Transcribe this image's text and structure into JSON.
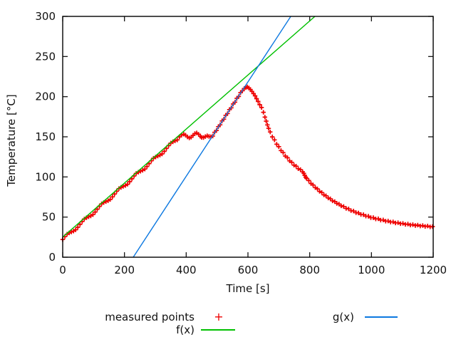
{
  "window": {
    "background": "#ffffff"
  },
  "chart_data": {
    "type": "scatter",
    "title": "",
    "xlabel": "Time [s]",
    "ylabel": "Temperature [°C]",
    "xlim": [
      0,
      1200
    ],
    "ylim": [
      0,
      300
    ],
    "xticks": [
      0,
      200,
      400,
      600,
      800,
      1000,
      1200
    ],
    "yticks": [
      0,
      50,
      100,
      150,
      200,
      250,
      300
    ],
    "grid": false,
    "border_color": "#000000",
    "legend_position": "below plot, two columns",
    "series": [
      {
        "name": "measured points",
        "style": "points",
        "marker": "plus",
        "color": "#ee0000",
        "points": [
          [
            0,
            22.0
          ],
          [
            7,
            25.6
          ],
          [
            14,
            28.7
          ],
          [
            21,
            30.3
          ],
          [
            28,
            31.5
          ],
          [
            35,
            32.6
          ],
          [
            42,
            34.2
          ],
          [
            49,
            37.3
          ],
          [
            56,
            40.9
          ],
          [
            63,
            44.5
          ],
          [
            70,
            47.6
          ],
          [
            77,
            49.2
          ],
          [
            84,
            50.4
          ],
          [
            91,
            51.5
          ],
          [
            98,
            53.1
          ],
          [
            105,
            56.3
          ],
          [
            112,
            59.8
          ],
          [
            119,
            63.4
          ],
          [
            126,
            66.5
          ],
          [
            133,
            68.1
          ],
          [
            140,
            69.3
          ],
          [
            147,
            70.4
          ],
          [
            154,
            72.0
          ],
          [
            161,
            75.2
          ],
          [
            168,
            78.7
          ],
          [
            175,
            82.3
          ],
          [
            182,
            85.5
          ],
          [
            189,
            87.0
          ],
          [
            196,
            88.2
          ],
          [
            203,
            89.4
          ],
          [
            210,
            90.9
          ],
          [
            217,
            94.1
          ],
          [
            224,
            97.6
          ],
          [
            231,
            101.2
          ],
          [
            238,
            104.4
          ],
          [
            245,
            105.9
          ],
          [
            252,
            107.1
          ],
          [
            259,
            108.3
          ],
          [
            266,
            109.8
          ],
          [
            273,
            113.0
          ],
          [
            280,
            116.6
          ],
          [
            287,
            120.1
          ],
          [
            294,
            123.3
          ],
          [
            301,
            124.8
          ],
          [
            308,
            126.0
          ],
          [
            315,
            127.2
          ],
          [
            322,
            128.7
          ],
          [
            329,
            131.9
          ],
          [
            336,
            135.5
          ],
          [
            343,
            139.0
          ],
          [
            350,
            142.2
          ],
          [
            357,
            143.8
          ],
          [
            364,
            144.9
          ],
          [
            371,
            146.1
          ],
          [
            378,
            149.9
          ],
          [
            385,
            152.0
          ],
          [
            392,
            153.3
          ],
          [
            398,
            152.0
          ],
          [
            404,
            149.8
          ],
          [
            410,
            148.6
          ],
          [
            416,
            149.5
          ],
          [
            422,
            151.8
          ],
          [
            428,
            154.0
          ],
          [
            434,
            154.8
          ],
          [
            440,
            153.2
          ],
          [
            446,
            150.6
          ],
          [
            450,
            149.2
          ],
          [
            456,
            149.0
          ],
          [
            462,
            150.3
          ],
          [
            468,
            151.2
          ],
          [
            474,
            150.4
          ],
          [
            480,
            150.0
          ],
          [
            486,
            151.0
          ],
          [
            492,
            155.6
          ],
          [
            498,
            157.9
          ],
          [
            504,
            162.6
          ],
          [
            510,
            164.9
          ],
          [
            516,
            169.7
          ],
          [
            522,
            172.0
          ],
          [
            528,
            176.7
          ],
          [
            534,
            179.0
          ],
          [
            540,
            183.8
          ],
          [
            546,
            186.1
          ],
          [
            552,
            190.8
          ],
          [
            558,
            193.1
          ],
          [
            564,
            197.9
          ],
          [
            570,
            200.2
          ],
          [
            576,
            204.9
          ],
          [
            582,
            207.3
          ],
          [
            588,
            210.2
          ],
          [
            593,
            211.4
          ],
          [
            598,
            212.1
          ],
          [
            603,
            210.8
          ],
          [
            608,
            208.9
          ],
          [
            613,
            206.5
          ],
          [
            618,
            203.8
          ],
          [
            623,
            201.0
          ],
          [
            628,
            197.5
          ],
          [
            633,
            194.0
          ],
          [
            638,
            190.0
          ],
          [
            644,
            186.5
          ],
          [
            650,
            180.5
          ],
          [
            655,
            174.5
          ],
          [
            659,
            169.5
          ],
          [
            663,
            164.8
          ],
          [
            667,
            160.5
          ],
          [
            672,
            156.0
          ],
          [
            679,
            149.9
          ],
          [
            686,
            146.2
          ],
          [
            693,
            140.8
          ],
          [
            700,
            137.7
          ],
          [
            707,
            132.9
          ],
          [
            714,
            130.3
          ],
          [
            721,
            126.0
          ],
          [
            728,
            123.9
          ],
          [
            735,
            120.0
          ],
          [
            742,
            118.2
          ],
          [
            749,
            114.7
          ],
          [
            756,
            113.4
          ],
          [
            763,
            110.2
          ],
          [
            770,
            109.1
          ],
          [
            777,
            106.3
          ],
          [
            781,
            104.5
          ],
          [
            784,
            102.0
          ],
          [
            787,
            99.8
          ],
          [
            790,
            98.2
          ],
          [
            797,
            95.5
          ],
          [
            804,
            91.9
          ],
          [
            811,
            90.0
          ],
          [
            818,
            86.7
          ],
          [
            825,
            85.1
          ],
          [
            832,
            82.0
          ],
          [
            839,
            80.6
          ],
          [
            846,
            77.7
          ],
          [
            853,
            76.5
          ],
          [
            860,
            73.8
          ],
          [
            867,
            72.7
          ],
          [
            874,
            70.2
          ],
          [
            881,
            69.3
          ],
          [
            888,
            67.0
          ],
          [
            895,
            66.2
          ],
          [
            902,
            64.0
          ],
          [
            910,
            63.2
          ],
          [
            918,
            60.8
          ],
          [
            926,
            60.2
          ],
          [
            934,
            58.0
          ],
          [
            942,
            57.5
          ],
          [
            950,
            55.5
          ],
          [
            958,
            55.1
          ],
          [
            966,
            53.2
          ],
          [
            974,
            53.0
          ],
          [
            982,
            51.2
          ],
          [
            990,
            51.0
          ],
          [
            998,
            49.3
          ],
          [
            1006,
            49.3
          ],
          [
            1014,
            47.7
          ],
          [
            1022,
            47.8
          ],
          [
            1030,
            46.2
          ],
          [
            1038,
            46.4
          ],
          [
            1046,
            44.9
          ],
          [
            1054,
            45.1
          ],
          [
            1062,
            43.8
          ],
          [
            1070,
            44.0
          ],
          [
            1078,
            42.7
          ],
          [
            1086,
            43.0
          ],
          [
            1094,
            41.8
          ],
          [
            1102,
            42.1
          ],
          [
            1110,
            40.9
          ],
          [
            1118,
            41.3
          ],
          [
            1126,
            40.1
          ],
          [
            1134,
            40.6
          ],
          [
            1142,
            39.5
          ],
          [
            1150,
            40.0
          ],
          [
            1158,
            38.9
          ],
          [
            1166,
            39.4
          ],
          [
            1174,
            38.3
          ],
          [
            1182,
            38.9
          ],
          [
            1190,
            37.8
          ],
          [
            1198,
            38.2
          ]
        ]
      },
      {
        "name": "f(x)",
        "style": "line",
        "color": "#00c000",
        "line": {
          "slope": 0.3366,
          "intercept": 25.0,
          "t_start": 0,
          "t_end": 817
        }
      },
      {
        "name": "g(x)",
        "style": "line",
        "color": "#0c78e0",
        "line": {
          "slope": 0.588,
          "intercept": -134.4,
          "t_start": 228.5,
          "t_end": 739
        }
      }
    ]
  },
  "legend": {
    "entries": [
      {
        "label": "measured points",
        "swatch": "plus",
        "symbol": "+",
        "color": "#ee0000"
      },
      {
        "label": "f(x)",
        "swatch": "line",
        "color": "#00c000"
      },
      {
        "label": "g(x)",
        "swatch": "line",
        "color": "#0c78e0"
      }
    ]
  }
}
